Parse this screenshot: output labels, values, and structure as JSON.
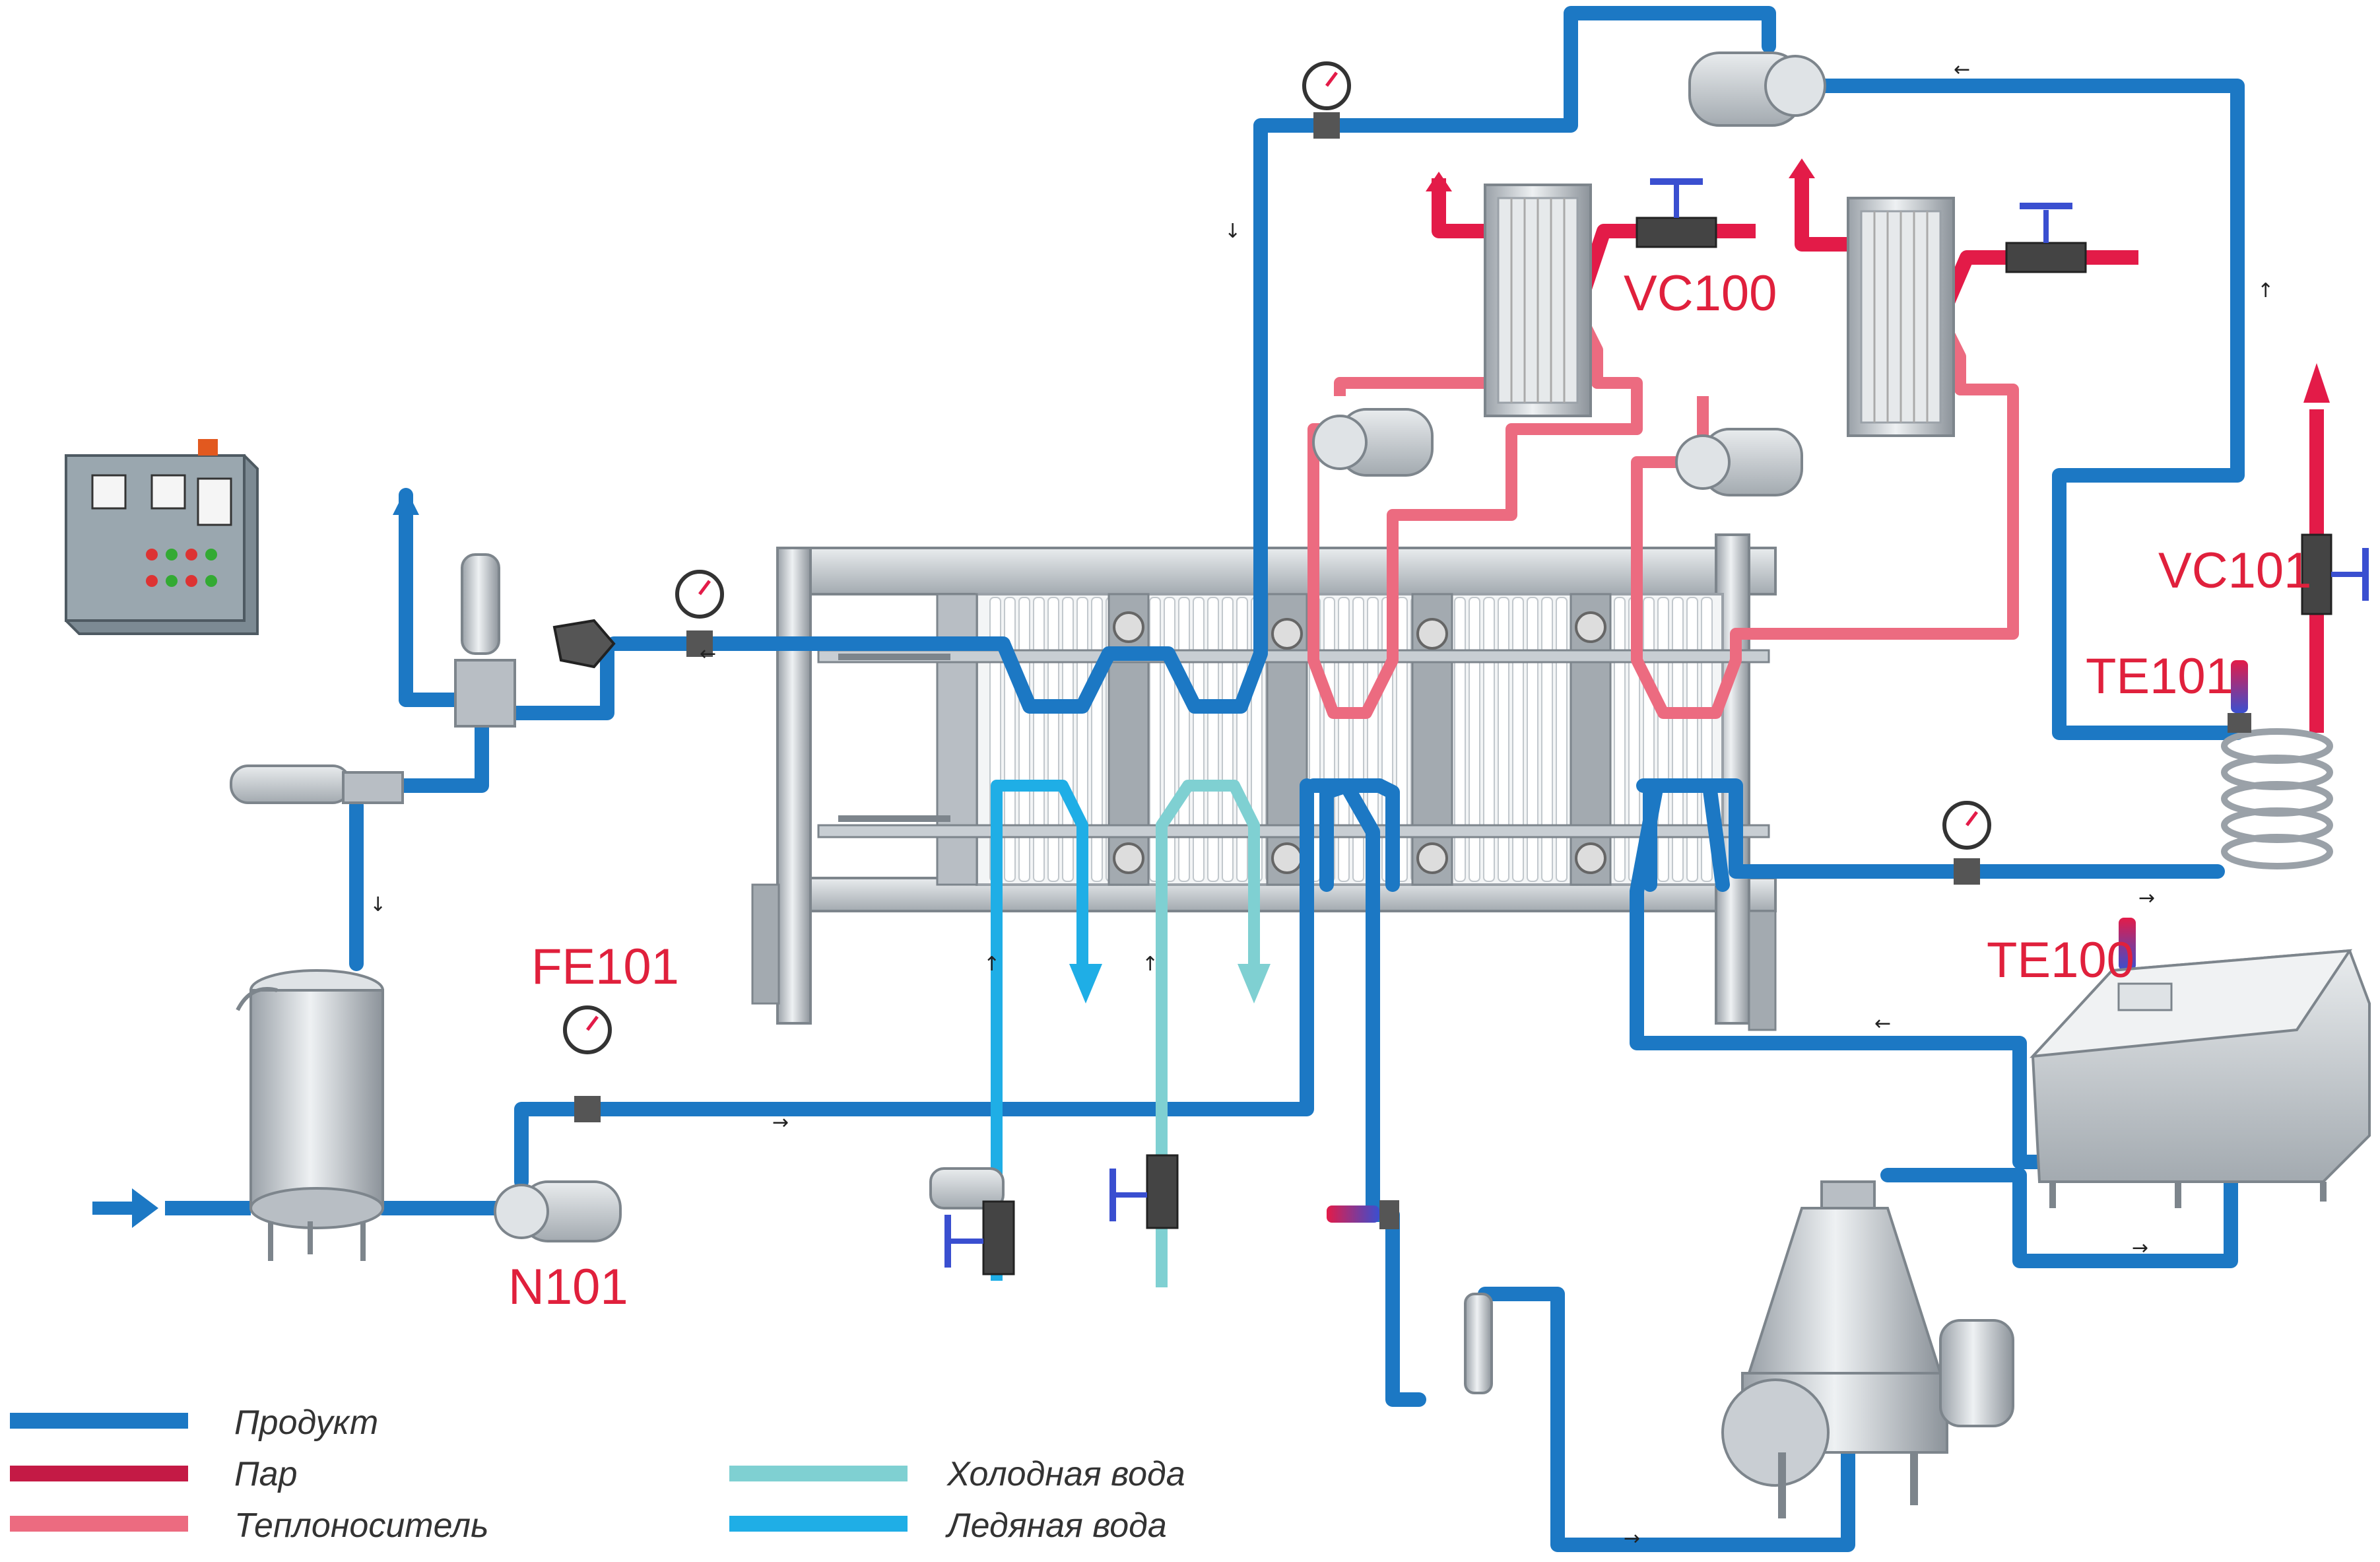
{
  "colors": {
    "product": "#1c78c4",
    "steam": "#e31b48",
    "heat_carrier": "#ec6b80",
    "cold_water": "#7fd0d2",
    "ice_water": "#1faee6",
    "label_red": "#e0203c",
    "metal": "#b8bec4",
    "metal_dark": "#7d858c"
  },
  "labels": {
    "vc100": "VC100",
    "vc101": "VC101",
    "te101": "TE101",
    "te100": "TE100",
    "fe101": "FE101",
    "n101": "N101"
  },
  "legend": [
    {
      "key": "product",
      "text": "Продукт"
    },
    {
      "key": "steam",
      "text": "Пар"
    },
    {
      "key": "heat_carrier",
      "text": "Теплоноситель"
    },
    {
      "key": "cold_water",
      "text": "Холодная вода"
    },
    {
      "key": "ice_water",
      "text": "Ледяная вода"
    }
  ],
  "icons": [
    "control-cabinet-icon",
    "storage-tank-icon",
    "centrifugal-pump-icon",
    "plate-heat-exchanger-icon",
    "separator-icon",
    "homogenizer-icon",
    "pressure-gauge-icon",
    "control-valve-icon",
    "temperature-sensor-icon",
    "holding-coil-icon"
  ]
}
